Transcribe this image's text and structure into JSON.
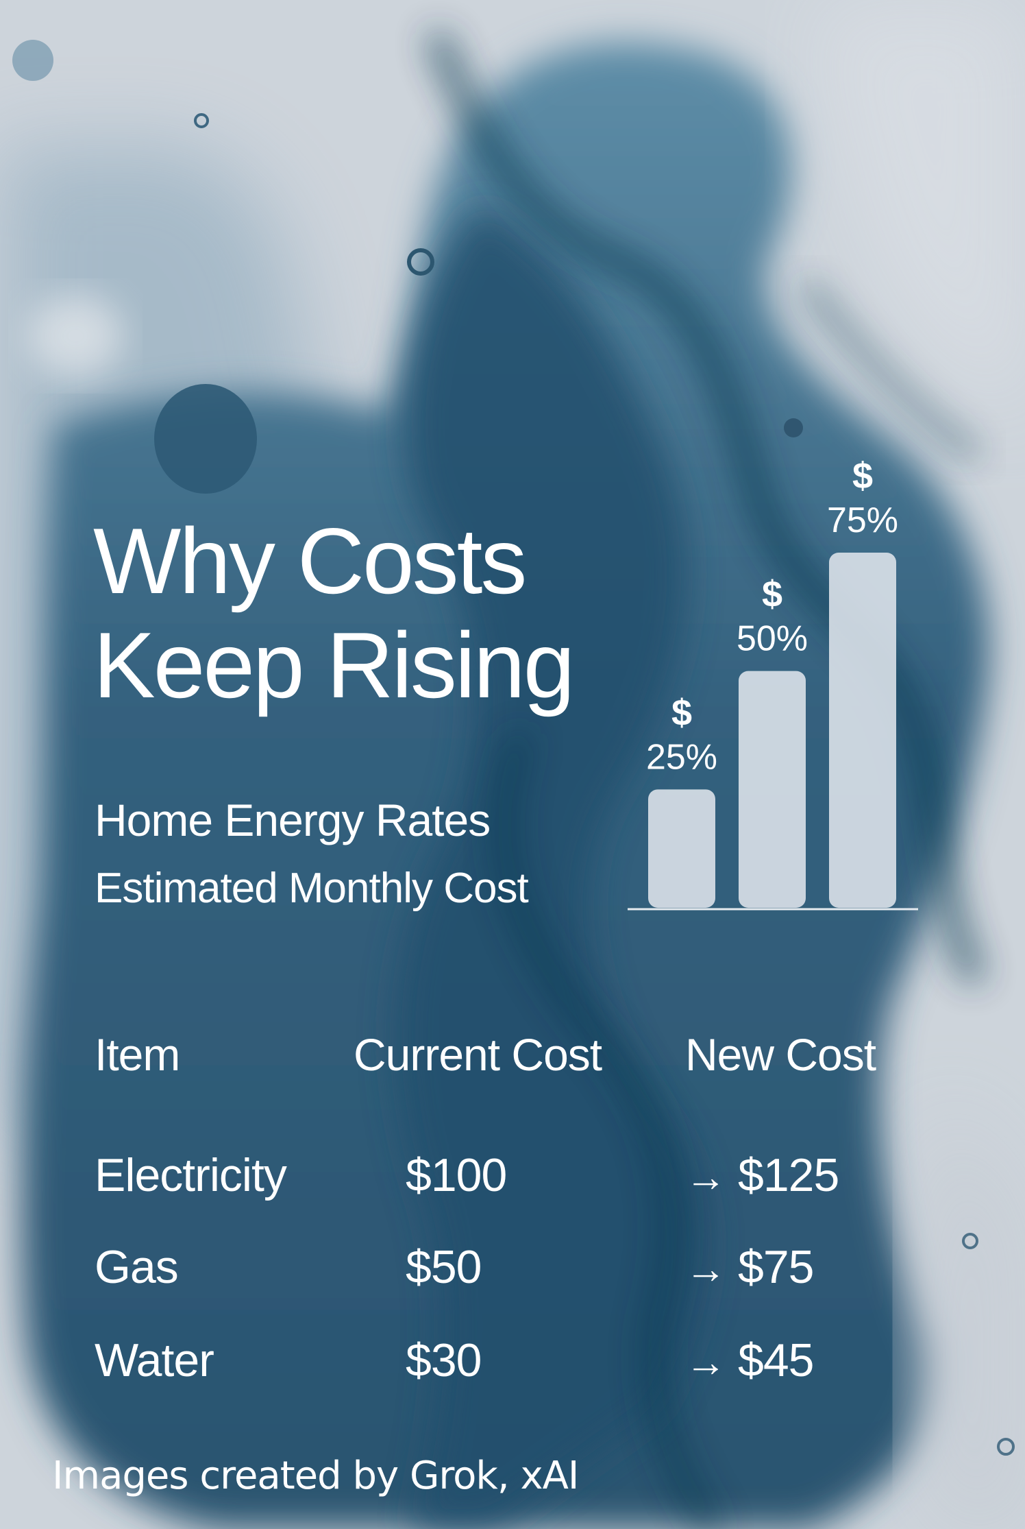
{
  "colors": {
    "paper": "#c9d0d8",
    "ink_dark": "#0f3149",
    "ink_mid": "#3a6985",
    "ink_light": "#8aa6b8",
    "bar_fill": "#dfe5ec",
    "text": "#ffffff"
  },
  "header": {
    "title_line1": "Why Costs",
    "title_line2": "Keep Rising",
    "subtitle": "Home Energy Rates",
    "subtitle2": "Estimated Monthly Cost"
  },
  "chart_data": {
    "type": "bar",
    "title": "",
    "xlabel": "",
    "ylabel": "",
    "categories": [
      "",
      "",
      ""
    ],
    "values": [
      25,
      50,
      75
    ],
    "data_labels": [
      {
        "symbol": "$",
        "text": "25%"
      },
      {
        "symbol": "$",
        "text": "50%"
      },
      {
        "symbol": "$",
        "text": "75%"
      }
    ],
    "ylim": [
      0,
      75
    ],
    "grid": false,
    "legend": "none"
  },
  "table": {
    "headers": [
      "Item",
      "Current Cost",
      "New Cost"
    ],
    "arrow": "→",
    "rows": [
      {
        "item": "Electricity",
        "current": "$100",
        "new": "$125"
      },
      {
        "item": "Gas",
        "current": "$50",
        "new": "$75"
      },
      {
        "item": "Water",
        "current": "$30",
        "new": "$45"
      }
    ]
  },
  "footer": {
    "credit": "Images created by Grok, xAI"
  }
}
